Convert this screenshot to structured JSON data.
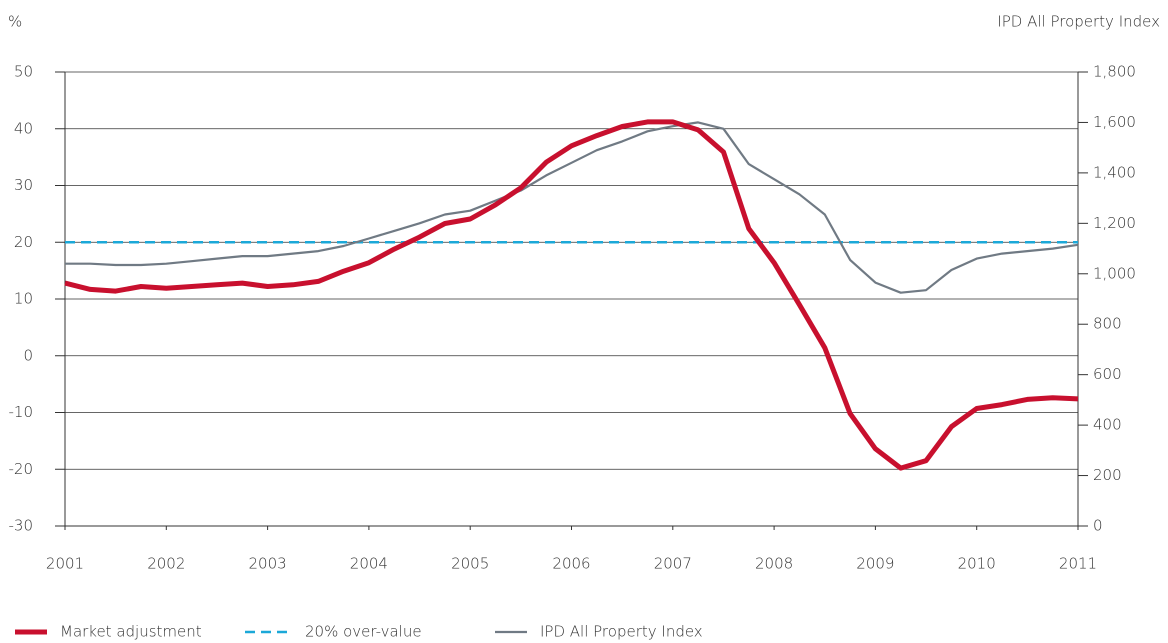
{
  "chart_data": {
    "type": "line",
    "y_label": "%",
    "y2_label": "IPD All Property Index",
    "x": [
      2001,
      2001.25,
      2001.5,
      2001.75,
      2002,
      2002.25,
      2002.5,
      2002.75,
      2003,
      2003.25,
      2003.5,
      2003.75,
      2004,
      2004.25,
      2004.5,
      2004.75,
      2005,
      2005.25,
      2005.5,
      2005.75,
      2006,
      2006.25,
      2006.5,
      2006.75,
      2007,
      2007.25,
      2007.5,
      2007.75,
      2008,
      2008.25,
      2008.5,
      2008.75,
      2009,
      2009.25,
      2009.5,
      2009.75,
      2010,
      2010.25,
      2010.5,
      2010.75,
      2011
    ],
    "xlim": [
      2001,
      2011
    ],
    "xticks": [
      2001,
      2002,
      2003,
      2004,
      2005,
      2006,
      2007,
      2008,
      2009,
      2010,
      2011
    ],
    "ylim": [
      -30,
      50
    ],
    "yticks": [
      -30,
      -20,
      -10,
      0,
      10,
      20,
      30,
      40,
      50
    ],
    "y2lim": [
      0,
      1800
    ],
    "y2ticks": [
      0,
      200,
      400,
      600,
      800,
      {
        "value": 1000,
        "label": "1,000"
      },
      {
        "value": 1200,
        "label": "1,200"
      },
      {
        "value": 1400,
        "label": "1,400"
      },
      {
        "value": 1600,
        "label": "1,600"
      },
      {
        "value": 1800,
        "label": "1,800"
      }
    ],
    "grid": true,
    "legend": "bottom",
    "series": [
      {
        "name": "Market adjustment",
        "color": "#c8102e",
        "style": "solid",
        "values": [
          12.8,
          11.7,
          11.4,
          12.2,
          11.9,
          12.2,
          12.5,
          12.8,
          12.2,
          12.5,
          13.1,
          14.9,
          16.4,
          18.8,
          20.9,
          23.3,
          24.1,
          26.6,
          29.6,
          34.1,
          37.0,
          38.8,
          40.4,
          41.2,
          41.2,
          39.8,
          35.9,
          22.4,
          16.4,
          9.0,
          1.4,
          -10.2,
          -16.4,
          -19.8,
          -18.5,
          -12.5,
          -9.3,
          -8.6,
          -7.7,
          -7.4,
          -7.6
        ]
      },
      {
        "name": "20% over-value",
        "color": "#1ba8d8",
        "style": "dashed",
        "values": [
          20,
          20,
          20,
          20,
          20,
          20,
          20,
          20,
          20,
          20,
          20,
          20,
          20,
          20,
          20,
          20,
          20,
          20,
          20,
          20,
          20,
          20,
          20,
          20,
          20,
          20,
          20,
          20,
          20,
          20,
          20,
          20,
          20,
          20,
          20,
          20,
          20,
          20,
          20,
          20,
          20
        ]
      },
      {
        "name": "IPD All Property Index",
        "color": "#707a84",
        "style": "thin",
        "axis": "y2",
        "values": [
          1040,
          1040,
          1035,
          1035,
          1040,
          1050,
          1060,
          1070,
          1070,
          1080,
          1090,
          1110,
          1140,
          1170,
          1200,
          1235,
          1250,
          1290,
          1330,
          1390,
          1440,
          1490,
          1525,
          1565,
          1585,
          1600,
          1575,
          1435,
          1375,
          1315,
          1235,
          1055,
          965,
          925,
          935,
          1015,
          1060,
          1080,
          1090,
          1100,
          1115
        ]
      }
    ]
  }
}
